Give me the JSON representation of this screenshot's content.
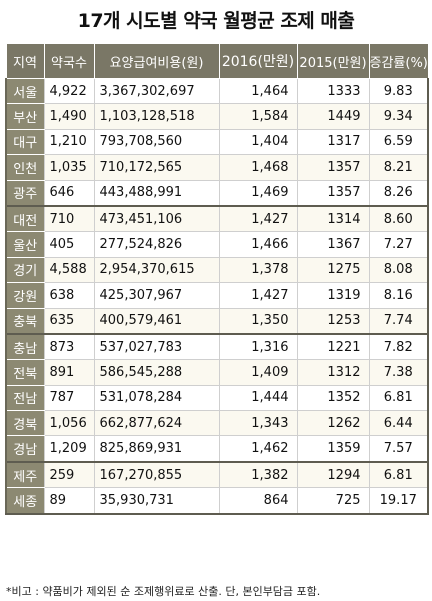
{
  "title": "17개 시도별 약국 월평균 조제 매출",
  "headers": [
    "지역",
    "약국수",
    "요양급여비용(원)",
    "2016(만원)",
    "2015(만원)",
    "증감률(%)"
  ],
  "rows": [
    {
      "region": "서울",
      "pharmacies": "4,922",
      "cost": "3,367,302,697",
      "y2016": "1,464",
      "y2015": "1333",
      "rate": "9.83"
    },
    {
      "region": "부산",
      "pharmacies": "1,490",
      "cost": "1,103,128,518",
      "y2016": "1,584",
      "y2015": "1449",
      "rate": "9.34"
    },
    {
      "region": "대구",
      "pharmacies": "1,210",
      "cost": "793,708,560",
      "y2016": "1,404",
      "y2015": "1317",
      "rate": "6.59"
    },
    {
      "region": "인천",
      "pharmacies": "1,035",
      "cost": "710,172,565",
      "y2016": "1,468",
      "y2015": "1357",
      "rate": "8.21"
    },
    {
      "region": "광주",
      "pharmacies": "646",
      "cost": "443,488,991",
      "y2016": "1,469",
      "y2015": "1357",
      "rate": "8.26"
    },
    {
      "region": "대전",
      "pharmacies": "710",
      "cost": "473,451,106",
      "y2016": "1,427",
      "y2015": "1314",
      "rate": "8.60"
    },
    {
      "region": "울산",
      "pharmacies": "405",
      "cost": "277,524,826",
      "y2016": "1,466",
      "y2015": "1367",
      "rate": "7.27"
    },
    {
      "region": "경기",
      "pharmacies": "4,588",
      "cost": "2,954,370,615",
      "y2016": "1,378",
      "y2015": "1275",
      "rate": "8.08"
    },
    {
      "region": "강원",
      "pharmacies": "638",
      "cost": "425,307,967",
      "y2016": "1,427",
      "y2015": "1319",
      "rate": "8.16"
    },
    {
      "region": "충북",
      "pharmacies": "635",
      "cost": "400,579,461",
      "y2016": "1,350",
      "y2015": "1253",
      "rate": "7.74"
    },
    {
      "region": "충남",
      "pharmacies": "873",
      "cost": "537,027,783",
      "y2016": "1,316",
      "y2015": "1221",
      "rate": "7.82"
    },
    {
      "region": "전북",
      "pharmacies": "891",
      "cost": "586,545,288",
      "y2016": "1,409",
      "y2015": "1312",
      "rate": "7.38"
    },
    {
      "region": "전남",
      "pharmacies": "787",
      "cost": "531,078,284",
      "y2016": "1,444",
      "y2015": "1352",
      "rate": "6.81"
    },
    {
      "region": "경북",
      "pharmacies": "1,056",
      "cost": "662,877,624",
      "y2016": "1,343",
      "y2015": "1262",
      "rate": "6.44"
    },
    {
      "region": "경남",
      "pharmacies": "1,209",
      "cost": "825,869,931",
      "y2016": "1,462",
      "y2015": "1359",
      "rate": "7.57"
    },
    {
      "region": "제주",
      "pharmacies": "259",
      "cost": "167,270,855",
      "y2016": "1,382",
      "y2015": "1294",
      "rate": "6.81"
    },
    {
      "region": "세종",
      "pharmacies": "89",
      "cost": "35,930,731",
      "y2016": "864",
      "y2015": "725",
      "rate": "19.17"
    }
  ],
  "note": "*비고 : 약품비가 제외된 순 조제행위료로 산출. 단, 본인부담금 포함.",
  "colors": {
    "header_bg": "#7a7766",
    "region_bg": "#8c8972",
    "group_border": "#5e5c50"
  }
}
